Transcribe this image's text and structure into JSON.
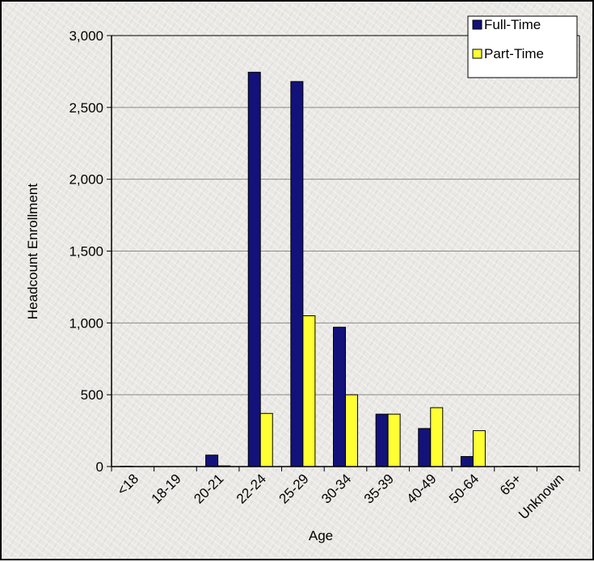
{
  "chart_data": {
    "type": "bar",
    "title": "",
    "xlabel": "Age",
    "ylabel": "Headcount Enrollment",
    "categories": [
      "<18",
      "18-19",
      "20-21",
      "22-24",
      "25-29",
      "30-34",
      "35-39",
      "40-49",
      "50-64",
      "65+",
      "Unknown"
    ],
    "series": [
      {
        "name": "Full-Time",
        "color": "#12127a",
        "values": [
          2,
          0,
          80,
          2745,
          2680,
          970,
          365,
          265,
          70,
          2,
          2
        ]
      },
      {
        "name": "Part-Time",
        "color": "#ffff33",
        "values": [
          0,
          0,
          5,
          370,
          1050,
          500,
          365,
          410,
          250,
          2,
          3
        ]
      }
    ],
    "ylim": [
      0,
      3000
    ],
    "yticks": [
      0,
      500,
      1000,
      1500,
      2000,
      2500,
      3000
    ],
    "ytick_labels": [
      "0",
      "500",
      "1,000",
      "1,500",
      "2,000",
      "2,500",
      "3,000"
    ],
    "grid": true,
    "legend": "top-right"
  }
}
